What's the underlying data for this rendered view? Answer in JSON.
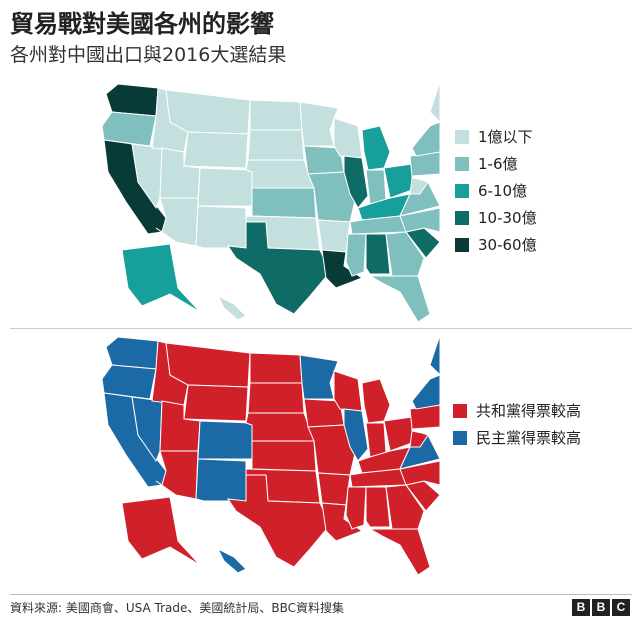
{
  "title": "貿易戰對美國各州的影響",
  "subtitle": "各州對中國出口與2016大選結果",
  "exports_map": {
    "legend": [
      {
        "label": "1億以下",
        "color": "#c3dfde"
      },
      {
        "label": "1-6億",
        "color": "#7fbfbd"
      },
      {
        "label": "6-10億",
        "color": "#179f9b"
      },
      {
        "label": "10-30億",
        "color": "#0f6b66"
      },
      {
        "label": "30-60億",
        "color": "#083b37"
      }
    ]
  },
  "election_map": {
    "legend": [
      {
        "label": "共和黨得票較高",
        "color": "#d0202a"
      },
      {
        "label": "民主黨得票較高",
        "color": "#1b6aa5"
      }
    ]
  },
  "source": "資料來源: 美國商會、USA Trade、美國統計局、BBC資料搜集",
  "brand": [
    "B",
    "B",
    "C"
  ]
}
